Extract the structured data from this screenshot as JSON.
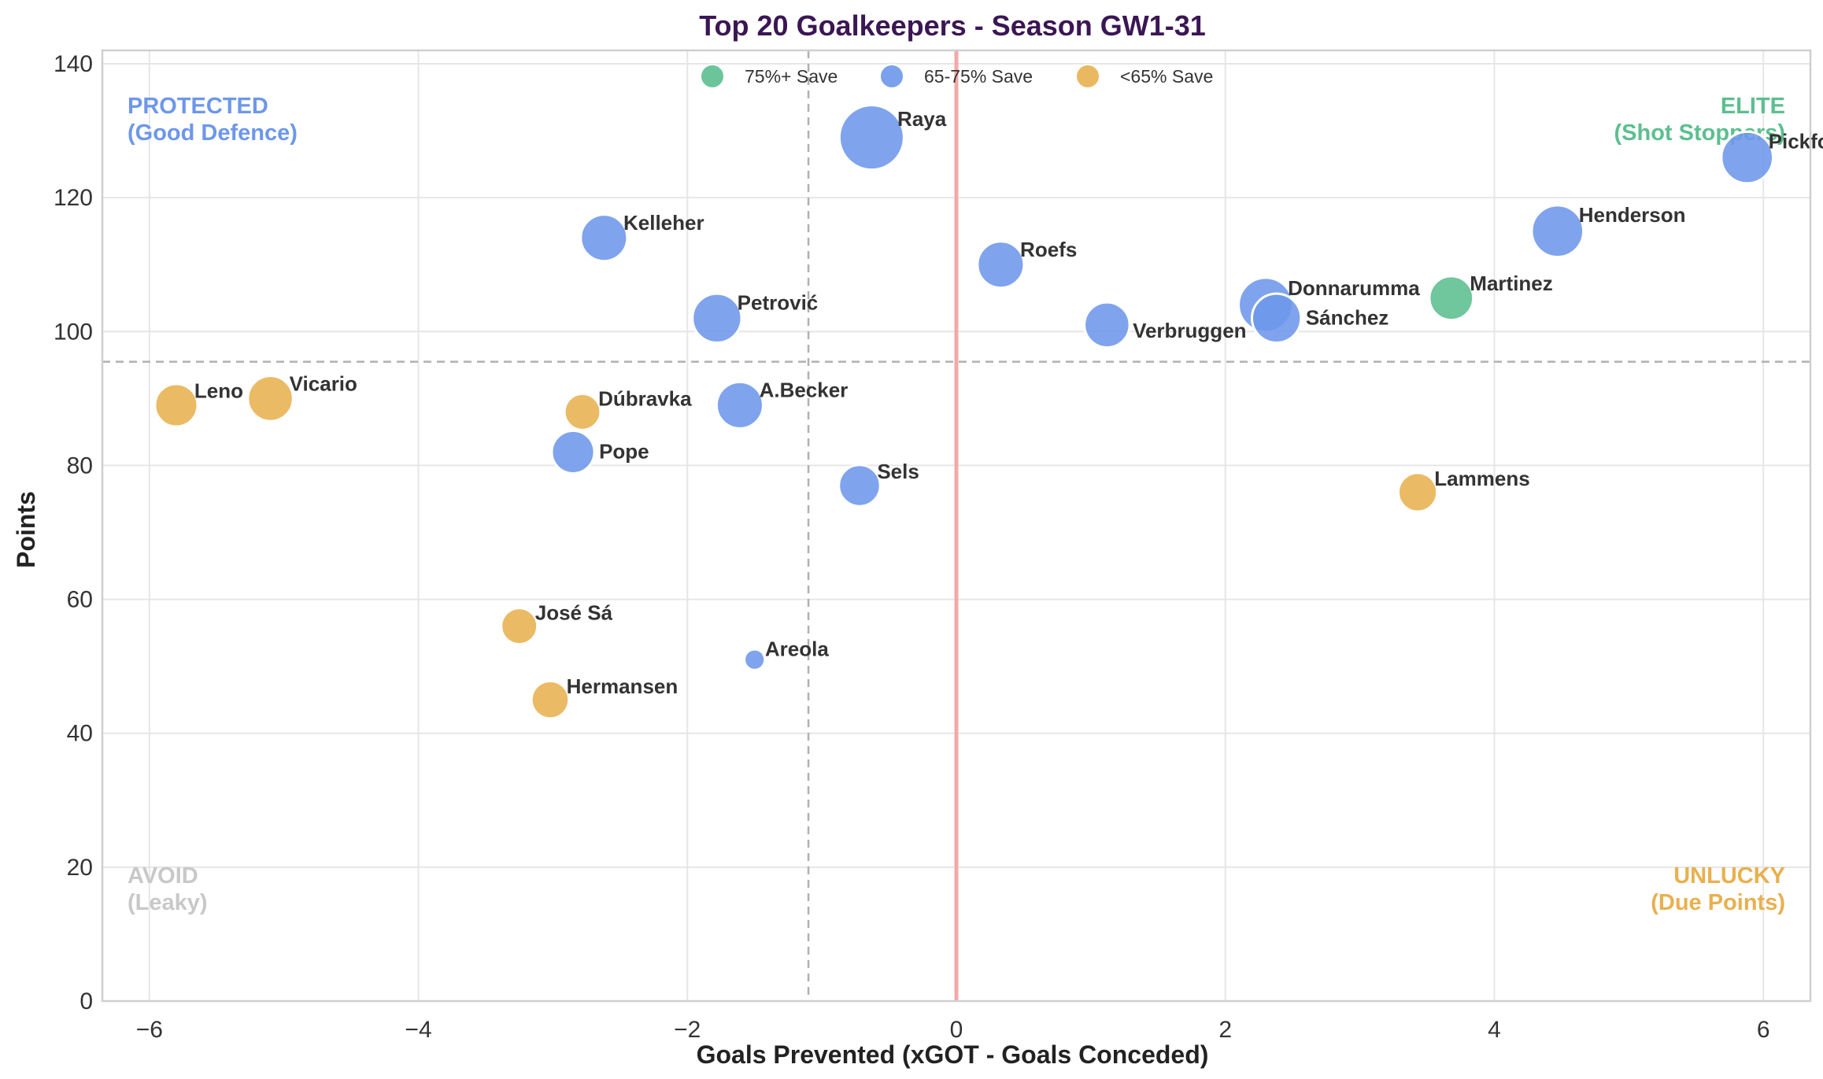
{
  "chart_data": {
    "type": "scatter",
    "title": "Top 20 Goalkeepers - Season GW1-31",
    "xlabel": "Goals Prevented (xGOT - Goals Conceded)",
    "ylabel": "Points",
    "xlim": [
      -6.35,
      6.35
    ],
    "ylim": [
      0,
      142
    ],
    "x_ticks": [
      -6,
      -4,
      -2,
      0,
      2,
      4,
      6
    ],
    "x_tick_labels": [
      "−6",
      "−4",
      "−2",
      "0",
      "2",
      "4",
      "6"
    ],
    "y_ticks": [
      0,
      20,
      40,
      60,
      80,
      100,
      120,
      140
    ],
    "y_tick_labels": [
      "0",
      "20",
      "40",
      "60",
      "80",
      "100",
      "120",
      "140"
    ],
    "grid": true,
    "reference_lines": {
      "vertical_zero": 0,
      "vertical_dashed": -1.1,
      "horizontal_dashed": 95.5
    },
    "legend": {
      "placement": "top-center",
      "entries": [
        {
          "label": "75%+ Save",
          "color": "#5cbf8f"
        },
        {
          "label": "65-75% Save",
          "color": "#6d97ea"
        },
        {
          "label": "<65% Save",
          "color": "#e8b04f"
        }
      ]
    },
    "quadrant_labels": [
      {
        "lines": [
          "PROTECTED",
          "(Good Defence)"
        ],
        "color": "#6d97ea",
        "corner": "top-left"
      },
      {
        "lines": [
          "ELITE",
          "(Shot Stoppers)"
        ],
        "color": "#5cbf8f",
        "corner": "top-right"
      },
      {
        "lines": [
          "AVOID",
          "(Leaky)"
        ],
        "color": "#c8c8c8",
        "corner": "bottom-left"
      },
      {
        "lines": [
          "UNLUCKY",
          "(Due Points)"
        ],
        "color": "#e8b04f",
        "corner": "bottom-right"
      }
    ],
    "points": [
      {
        "name": "Raya",
        "x": -0.63,
        "y": 129,
        "save_band": "65-75% Save",
        "size": 5,
        "label_side": "right-up"
      },
      {
        "name": "Pickford",
        "x": 5.88,
        "y": 126,
        "save_band": "65-75% Save",
        "size": 4,
        "label_side": "right-up"
      },
      {
        "name": "Henderson",
        "x": 4.47,
        "y": 115,
        "save_band": "65-75% Save",
        "size": 4,
        "label_side": "right-up"
      },
      {
        "name": "Kelleher",
        "x": -2.62,
        "y": 114,
        "save_band": "65-75% Save",
        "size": 3.6,
        "label_side": "right-up"
      },
      {
        "name": "Roefs",
        "x": 0.33,
        "y": 110,
        "save_band": "65-75% Save",
        "size": 3.6,
        "label_side": "right-up"
      },
      {
        "name": "Martinez",
        "x": 3.68,
        "y": 105,
        "save_band": "75%+ Save",
        "size": 3.4,
        "label_side": "right-up"
      },
      {
        "name": "Donnarumma",
        "x": 2.3,
        "y": 104,
        "save_band": "65-75% Save",
        "size": 4.2,
        "label_side": "right-up"
      },
      {
        "name": "Petrović",
        "x": -1.78,
        "y": 102,
        "save_band": "65-75% Save",
        "size": 3.8,
        "label_side": "right-up"
      },
      {
        "name": "Sánchez",
        "x": 2.38,
        "y": 102,
        "save_band": "65-75% Save",
        "size": 3.8,
        "label_side": "right"
      },
      {
        "name": "Verbruggen",
        "x": 1.12,
        "y": 101,
        "save_band": "65-75% Save",
        "size": 3.5,
        "label_side": "right-down"
      },
      {
        "name": "Vicario",
        "x": -5.1,
        "y": 90,
        "save_band": "<65% Save",
        "size": 3.5,
        "label_side": "right-up"
      },
      {
        "name": "Leno",
        "x": -5.8,
        "y": 89,
        "save_band": "<65% Save",
        "size": 3.3,
        "label_side": "right-up"
      },
      {
        "name": "A.Becker",
        "x": -1.61,
        "y": 89,
        "save_band": "65-75% Save",
        "size": 3.6,
        "label_side": "right-up"
      },
      {
        "name": "Dúbravka",
        "x": -2.78,
        "y": 88,
        "save_band": "<65% Save",
        "size": 2.8,
        "label_side": "right-up"
      },
      {
        "name": "Pope",
        "x": -2.85,
        "y": 82,
        "save_band": "65-75% Save",
        "size": 3.3,
        "label_side": "right"
      },
      {
        "name": "Sels",
        "x": -0.72,
        "y": 77,
        "save_band": "65-75% Save",
        "size": 3.2,
        "label_side": "right-up"
      },
      {
        "name": "Lammens",
        "x": 3.43,
        "y": 76,
        "save_band": "<65% Save",
        "size": 3.0,
        "label_side": "right-up"
      },
      {
        "name": "José Sá",
        "x": -3.25,
        "y": 56,
        "save_band": "<65% Save",
        "size": 2.8,
        "label_side": "right-up"
      },
      {
        "name": "Areola",
        "x": -1.5,
        "y": 51,
        "save_band": "65-75% Save",
        "size": 1.6,
        "label_side": "right-up"
      },
      {
        "name": "Hermansen",
        "x": -3.02,
        "y": 45,
        "save_band": "<65% Save",
        "size": 2.9,
        "label_side": "right-up"
      }
    ]
  }
}
